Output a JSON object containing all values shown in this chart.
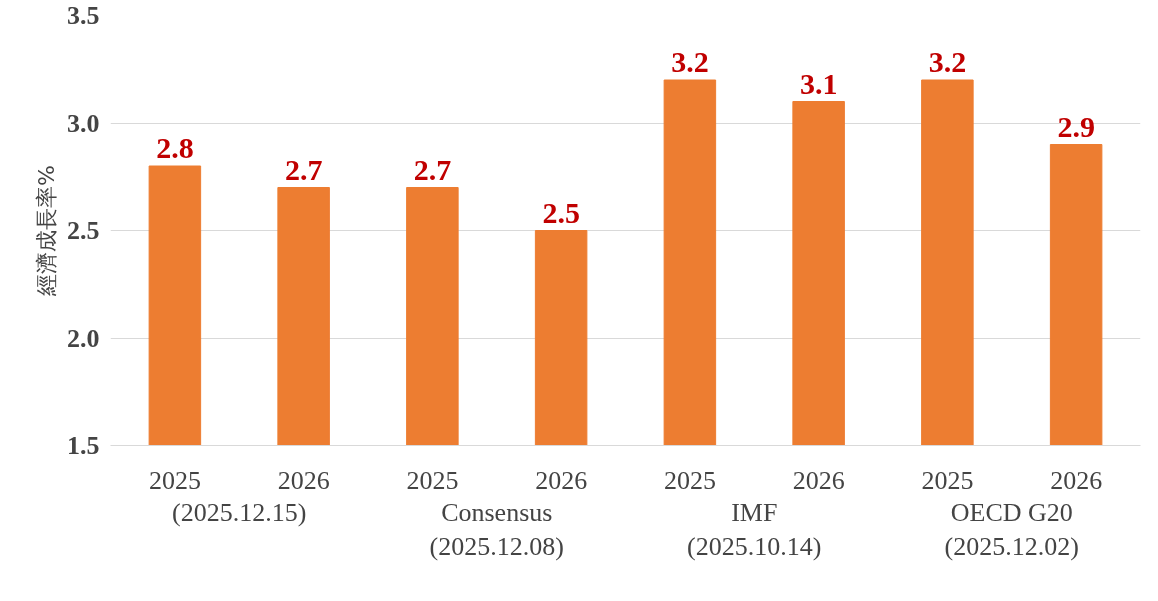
{
  "chart_data": {
    "type": "bar",
    "ylabel": "經濟成長率%",
    "categories": [
      "2025",
      "2026",
      "2025",
      "2026",
      "2025",
      "2026",
      "2025",
      "2026"
    ],
    "values": [
      2.8,
      2.7,
      2.7,
      2.5,
      3.2,
      3.1,
      3.2,
      2.9
    ],
    "color": "#ed7d31",
    "data_labels": true,
    "ylim": [
      1.5,
      3.5
    ],
    "yticks": [
      1.5,
      {
        "value": 2,
        "label": "2.0"
      },
      2.5,
      {
        "value": 3,
        "label": "3.0"
      },
      3.5
    ],
    "grid": "y",
    "annotations": [
      "(2025.12.15)",
      "Consensus\n(2025.12.08)",
      "IMF\n(2025.10.14)",
      "OECD G20\n(2025.12.02)"
    ]
  }
}
